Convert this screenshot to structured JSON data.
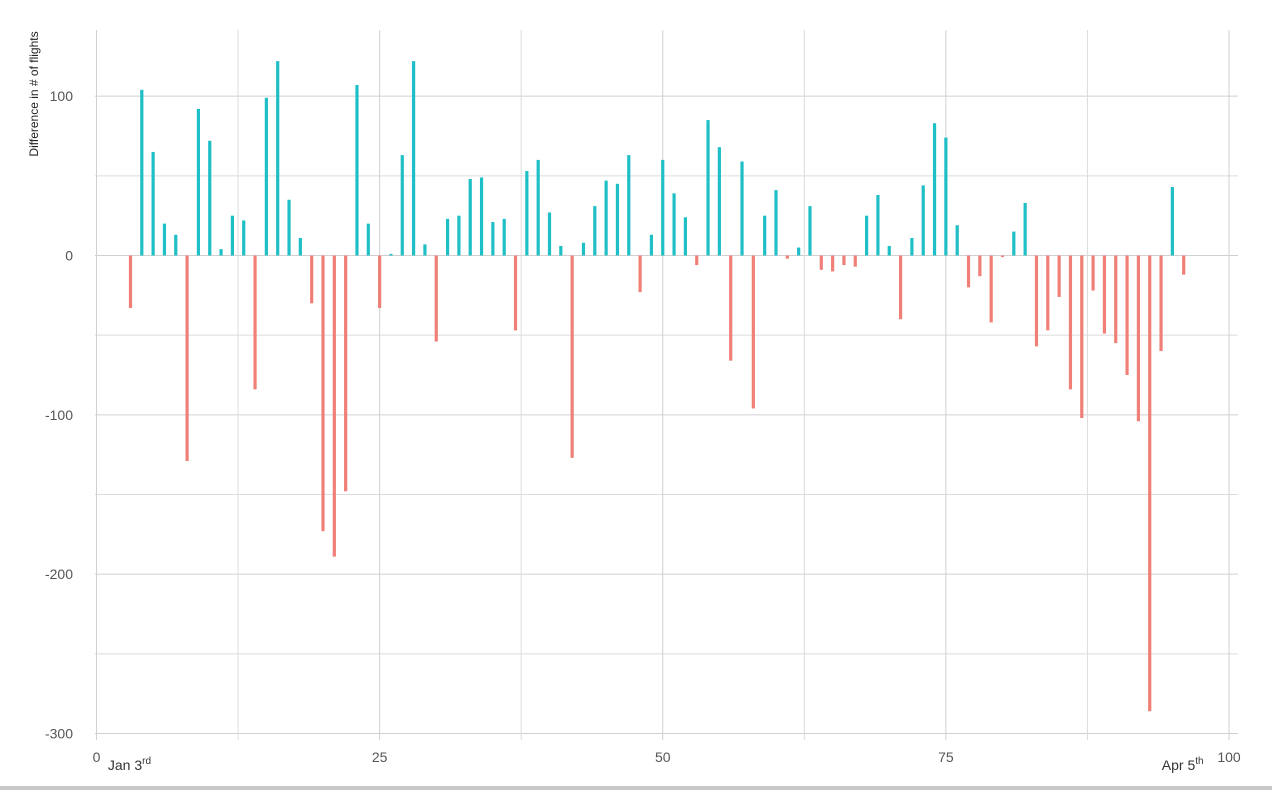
{
  "chart_data": {
    "type": "bar",
    "ylabel": "Difference in # of flights",
    "xlabel": "",
    "xlim": [
      0,
      100
    ],
    "ylim": [
      -300,
      140
    ],
    "x_ticks": [
      0,
      25,
      50,
      75,
      100
    ],
    "y_ticks": [
      100,
      0,
      -100,
      -200,
      -300
    ],
    "grid": true,
    "positive_color": "#1fbfc7",
    "negative_color": "#f08077",
    "annotations": [
      {
        "x": 3,
        "base": "Jan 3",
        "sup": "rd"
      },
      {
        "x": 96,
        "base": "Apr 5",
        "sup": "th"
      }
    ],
    "x": [
      3,
      4,
      5,
      6,
      7,
      8,
      9,
      10,
      11,
      12,
      13,
      14,
      15,
      16,
      17,
      18,
      19,
      20,
      21,
      22,
      23,
      24,
      25,
      26,
      27,
      28,
      29,
      30,
      31,
      32,
      33,
      34,
      35,
      36,
      37,
      38,
      39,
      40,
      41,
      42,
      43,
      44,
      45,
      46,
      47,
      48,
      49,
      50,
      51,
      52,
      53,
      54,
      55,
      56,
      57,
      58,
      59,
      60,
      61,
      62,
      63,
      64,
      65,
      66,
      67,
      68,
      69,
      70,
      71,
      72,
      73,
      74,
      75,
      76,
      77,
      78,
      79,
      80,
      81,
      82,
      83,
      84,
      85,
      86,
      87,
      88,
      89,
      90,
      91,
      92,
      93,
      94,
      95,
      96
    ],
    "values": [
      -33,
      104,
      65,
      20,
      13,
      -129,
      92,
      72,
      4,
      25,
      22,
      -84,
      99,
      122,
      35,
      11,
      -30,
      -173,
      -189,
      -148,
      107,
      20,
      -33,
      1,
      63,
      122,
      7,
      -54,
      23,
      25,
      48,
      49,
      21,
      23,
      -47,
      53,
      60,
      27,
      6,
      -127,
      8,
      31,
      47,
      45,
      63,
      -23,
      13,
      60,
      39,
      24,
      -6,
      85,
      68,
      -66,
      59,
      -96,
      25,
      41,
      -2,
      5,
      31,
      -9,
      -10,
      -6,
      -7,
      25,
      38,
      6,
      -40,
      11,
      44,
      83,
      74,
      19,
      -20,
      -13,
      -42,
      -1,
      15,
      33,
      -57,
      -47,
      -26,
      -84,
      -102,
      -22,
      -49,
      -55,
      -75,
      -104,
      -286,
      -60,
      43,
      -12
    ]
  }
}
